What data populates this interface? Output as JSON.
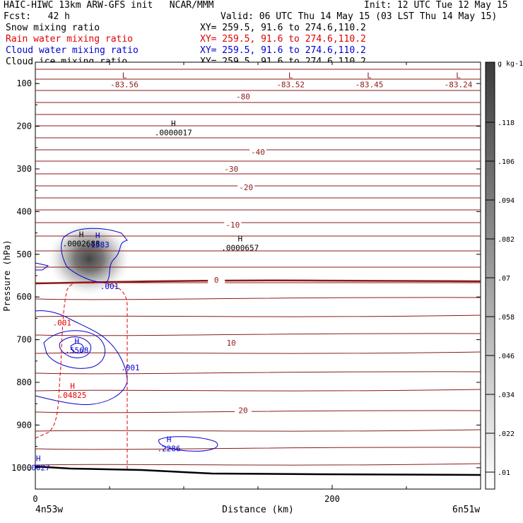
{
  "header": {
    "line1_left": "HAIC-HIWC 13km ARW-GFS init   NCAR/MMM",
    "line1_right": "Init: 12 UTC Tue 12 May 15",
    "line2_left": "Fcst:   42 h",
    "line2_right": "Valid: 06 UTC Thu 14 May 15 (03 LST Thu 14 May 15)",
    "fields": [
      {
        "name": "Snow mixing ratio",
        "xy": "XY= 259.5, 91.6 to 274.6,110.2",
        "color": "#000000"
      },
      {
        "name": "Rain water mixing ratio",
        "xy": "XY= 259.5, 91.6 to 274.6,110.2",
        "color": "#e00000"
      },
      {
        "name": "Cloud water mixing ratio",
        "xy": "XY= 259.5, 91.6 to 274.6,110.2",
        "color": "#0000d0"
      },
      {
        "name": "Cloud ice mixing ratio",
        "xy": "XY= 259.5, 91.6 to 274.6,110.2",
        "color": "#000000"
      }
    ]
  },
  "chart_data": {
    "type": "contour",
    "xlabel": "Distance (km)",
    "ylabel": "Pressure (hPa)",
    "xlim": [
      0,
      300
    ],
    "ylim": [
      1050,
      50
    ],
    "x_ticks": [
      0,
      200
    ],
    "y_ticks": [
      100,
      200,
      300,
      400,
      500,
      600,
      700,
      800,
      900,
      1000
    ],
    "x_end_labels": {
      "left": "4n53w",
      "right": "6n51w"
    },
    "temperature_contours": [
      {
        "label": "-80",
        "p": 130,
        "x": 140
      },
      {
        "label": "-40",
        "p": 260,
        "x": 150
      },
      {
        "label": "-30",
        "p": 300,
        "x": 132
      },
      {
        "label": "-20",
        "p": 343,
        "x": 142
      },
      {
        "label": "-10",
        "p": 431,
        "x": 133
      },
      {
        "label": "0",
        "p": 560,
        "x": 122
      },
      {
        "label": "10",
        "p": 707,
        "x": 132
      },
      {
        "label": "20",
        "p": 865,
        "x": 140
      }
    ],
    "annotations": [
      {
        "mark": "L",
        "value": "-83.56",
        "x": 60,
        "p": 87,
        "color": "#8b1a1a"
      },
      {
        "mark": "L",
        "value": "-83.52",
        "x": 172,
        "p": 87,
        "color": "#8b1a1a"
      },
      {
        "mark": "L",
        "value": "-83.45",
        "x": 225,
        "p": 87,
        "color": "#8b1a1a"
      },
      {
        "mark": "L",
        "value": "-83.24",
        "x": 285,
        "p": 87,
        "color": "#8b1a1a"
      },
      {
        "mark": "H",
        "value": ".0000017",
        "x": 93,
        "p": 200,
        "color": "#000000"
      },
      {
        "mark": "H",
        "value": ".0000657",
        "x": 138,
        "p": 470,
        "color": "#000000"
      },
      {
        "mark": "H",
        "value": ".0002688",
        "x": 31,
        "p": 460,
        "color": "#000000"
      },
      {
        "mark": "H",
        "value": ".1583",
        "x": 42,
        "p": 462,
        "color": "#0000d0"
      },
      {
        "mark": "H",
        "value": ".5568",
        "x": 28,
        "p": 710,
        "color": "#0000d0"
      },
      {
        "mark": "H",
        "value": ".04825",
        "x": 25,
        "p": 815,
        "color": "#e00000"
      },
      {
        "mark": "H",
        "value": ".2286",
        "x": 90,
        "p": 940,
        "color": "#0000d0"
      },
      {
        "mark": "H",
        "value": ".0027",
        "x": 2,
        "p": 985,
        "color": "#0000d0"
      }
    ],
    "line_labels": [
      {
        "text": ".001",
        "x": 50,
        "p": 575,
        "color": "#0000d0"
      },
      {
        "text": ".001",
        "x": 64,
        "p": 765,
        "color": "#0000d0"
      },
      {
        "text": ".001",
        "x": 18,
        "p": 660,
        "color": "#e00000"
      }
    ],
    "snow_max_center": {
      "x": 37,
      "p": 515
    },
    "colorbar": {
      "unit": "g kg-1",
      "ticks": [
        ".01",
        ".022",
        ".034",
        ".046",
        ".058",
        ".07",
        ".082",
        ".094",
        ".106",
        ".118"
      ]
    }
  }
}
